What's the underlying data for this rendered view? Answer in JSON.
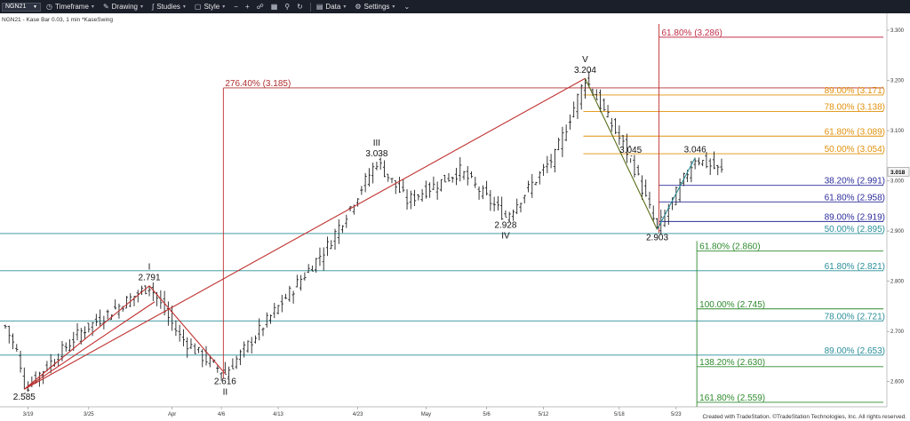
{
  "toolbar": {
    "symbol": "NGN21",
    "items": [
      {
        "label": "Timeframe",
        "icon": "timeframe-icon"
      },
      {
        "label": "Drawing",
        "icon": "pencil-icon"
      },
      {
        "label": "Studies",
        "icon": "studies-icon"
      },
      {
        "label": "Style",
        "icon": "style-icon"
      },
      {
        "label": "Data",
        "icon": "data-icon"
      },
      {
        "label": "Settings",
        "icon": "gear-icon"
      }
    ]
  },
  "chart_data": {
    "type": "candlestick",
    "title": "NGN21 - Kase Bar 0.03, 1 min  *KaseSwing",
    "footer": "Created with TradeStation. ©TradeStation Technologies, Inc. All rights reserved.",
    "last_price": "3.018",
    "y_range": [
      2.55,
      3.33
    ],
    "y_ticks": [
      "3.300",
      "3.200",
      "3.100",
      "3.000",
      "2.900",
      "2.800",
      "2.700",
      "2.600"
    ],
    "x_ticks": [
      "3/19",
      "3/25",
      "Apr",
      "4/6",
      "4/13",
      "4/23",
      "May",
      "5/6",
      "5/12",
      "5/18",
      "5/23"
    ],
    "swing_points": [
      {
        "label": "2.585",
        "wave": "",
        "price": 2.585,
        "bar": 5,
        "pos": "below"
      },
      {
        "label": "2.791",
        "wave": "I",
        "price": 2.791,
        "bar": 38,
        "pos": "above"
      },
      {
        "label": "2.616",
        "wave": "II",
        "price": 2.616,
        "bar": 58,
        "pos": "below"
      },
      {
        "label": "3.038",
        "wave": "III",
        "price": 3.038,
        "bar": 98,
        "pos": "above"
      },
      {
        "label": "2.928",
        "wave": "IV",
        "price": 2.928,
        "bar": 132,
        "pos": "below"
      },
      {
        "label": "3.204",
        "wave": "V",
        "price": 3.204,
        "bar": 153,
        "pos": "above"
      },
      {
        "label": "3.045",
        "wave": "",
        "price": 3.045,
        "bar": 165,
        "pos": "above"
      },
      {
        "label": "2.903",
        "wave": "",
        "price": 2.903,
        "bar": 172,
        "pos": "below"
      },
      {
        "label": "3.046",
        "wave": "",
        "price": 3.046,
        "bar": 182,
        "pos": "above"
      }
    ],
    "fib_levels": [
      {
        "label": "276.40% (3.185)",
        "price": 3.185,
        "color": "#b03030",
        "group": "red-left"
      },
      {
        "label": "61.80% (3.286)",
        "price": 3.286,
        "color": "#c0304a",
        "group": "red-right"
      },
      {
        "label": "89.00% (3.171)",
        "price": 3.171,
        "color": "#e0900a",
        "group": "orange"
      },
      {
        "label": "78.00% (3.138)",
        "price": 3.138,
        "color": "#e0900a",
        "group": "orange"
      },
      {
        "label": "61.80% (3.089)",
        "price": 3.089,
        "color": "#e0900a",
        "group": "orange"
      },
      {
        "label": "50.00% (3.054)",
        "price": 3.054,
        "color": "#e0900a",
        "group": "orange"
      },
      {
        "label": "38.20% (2.991)",
        "price": 2.991,
        "color": "#2c2c9c",
        "group": "blue"
      },
      {
        "label": "61.80% (2.958)",
        "price": 2.958,
        "color": "#2c2c9c",
        "group": "blue"
      },
      {
        "label": "89.00% (2.919)",
        "price": 2.919,
        "color": "#2c2c9c",
        "group": "blue"
      },
      {
        "label": "50.00% (2.895)",
        "price": 2.895,
        "color": "#2a8f9a",
        "group": "teal"
      },
      {
        "label": "61.80% (2.821)",
        "price": 2.821,
        "color": "#2a8f9a",
        "group": "teal"
      },
      {
        "label": "78.00% (2.721)",
        "price": 2.721,
        "color": "#2a8f9a",
        "group": "teal"
      },
      {
        "label": "89.00% (2.653)",
        "price": 2.653,
        "color": "#2a8f9a",
        "group": "teal"
      },
      {
        "label": "61.80% (2.860)",
        "price": 2.86,
        "color": "#2e8a2e",
        "group": "green"
      },
      {
        "label": "100.00% (2.745)",
        "price": 2.745,
        "color": "#2e8a2e",
        "group": "green"
      },
      {
        "label": "138.20% (2.630)",
        "price": 2.63,
        "color": "#2e8a2e",
        "group": "green"
      },
      {
        "label": "161.80% (2.559)",
        "price": 2.559,
        "color": "#2e8a2e",
        "group": "green"
      }
    ],
    "colors": {
      "red": "#c03030",
      "olive": "#5a6e1a",
      "blue": "#2c2c9c",
      "teal": "#2a8f9a",
      "green": "#2e8a2e",
      "orange": "#e0900a",
      "bars": "#222222"
    }
  }
}
